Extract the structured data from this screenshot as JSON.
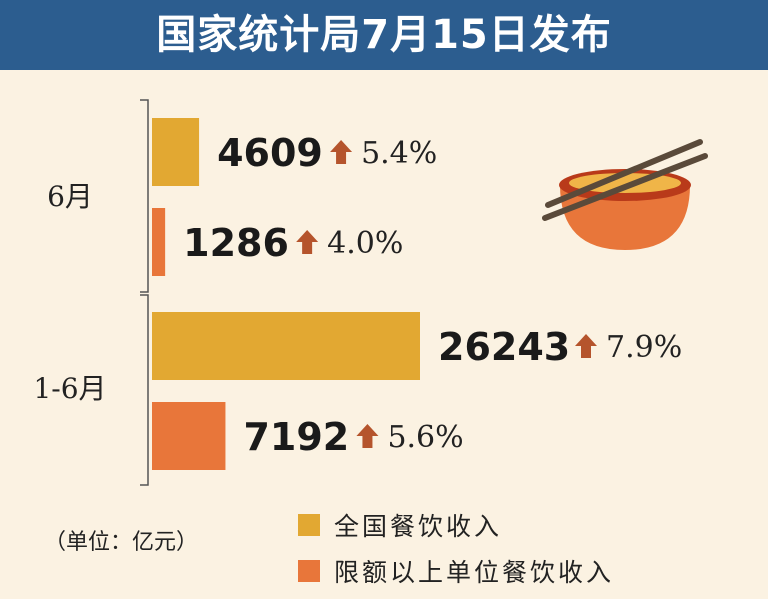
{
  "header": {
    "title": "国家统计局7月15日发布"
  },
  "unit_label": "（单位：亿元）",
  "colors": {
    "header_bg": "#2c5d8f",
    "series_total": "#e2a832",
    "series_above": "#e8763a",
    "arrow": "#b5542c",
    "background": "#fbf2e2"
  },
  "icon": "bowl-with-chopsticks-icon",
  "chart_data": {
    "type": "bar",
    "orientation": "horizontal",
    "categories": [
      "6月",
      "1-6月"
    ],
    "series": [
      {
        "name": "全国餐饮收入",
        "values": [
          4609,
          26243
        ],
        "growth": [
          "5.4%",
          "7.9%"
        ]
      },
      {
        "name": "限额以上单位餐饮收入",
        "values": [
          1286,
          7192
        ],
        "growth": [
          "4.0%",
          "5.6%"
        ]
      }
    ],
    "legend_position": "bottom-right"
  }
}
